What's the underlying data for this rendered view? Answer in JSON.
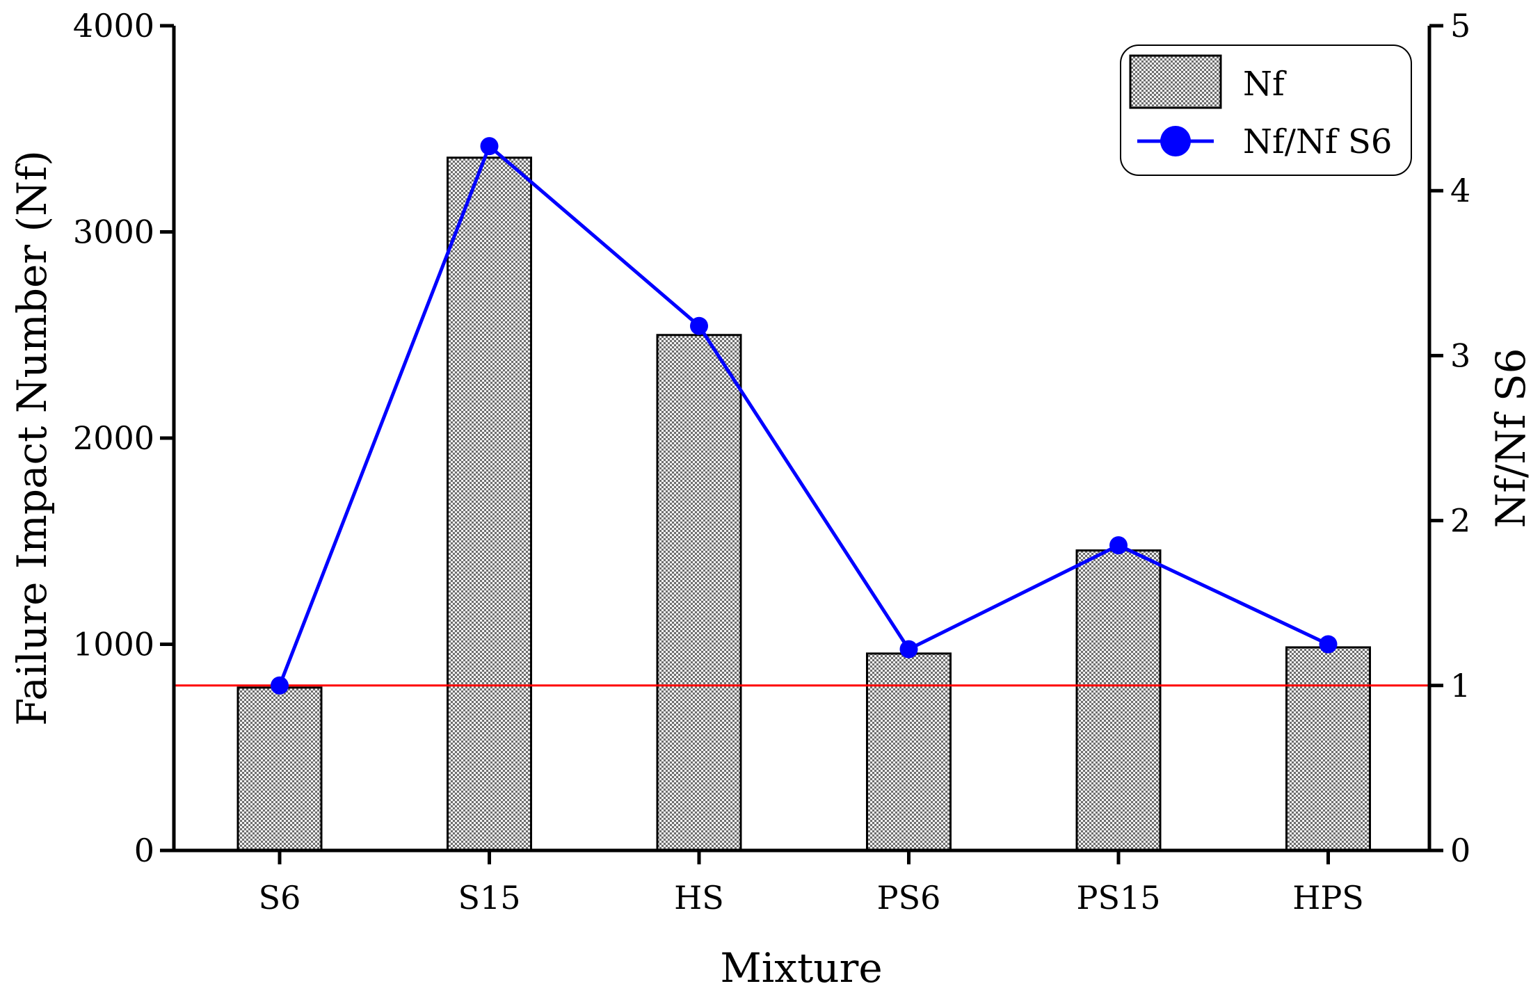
{
  "chart_data": {
    "type": "bar",
    "categories": [
      "S6",
      "S15",
      "HS",
      "PS6",
      "PS15",
      "HPS"
    ],
    "series": [
      {
        "name": "Nf",
        "type": "bar",
        "axis": "left",
        "values": [
          790,
          3360,
          2500,
          955,
          1455,
          985
        ]
      },
      {
        "name": "Nf/Nf S6",
        "type": "line",
        "axis": "right",
        "values": [
          1.0,
          4.27,
          3.18,
          1.22,
          1.85,
          1.25
        ],
        "color": "#0000ff"
      }
    ],
    "reference_line": {
      "axis": "right",
      "value": 1,
      "color": "#ff0000"
    },
    "xlabel": "Mixture",
    "ylabel": "Failure Impact Number (Nf)",
    "y2label": "Nf/Nf S6",
    "ylim": [
      0,
      4000
    ],
    "y2lim": [
      0,
      5
    ],
    "yticks": [
      "0",
      "1000",
      "2000",
      "3000",
      "4000"
    ],
    "y2ticks": [
      "0",
      "1",
      "2",
      "3",
      "4",
      "5"
    ],
    "legend": {
      "placement": "top-right",
      "entries": [
        "Nf",
        "Nf/Nf S6"
      ]
    },
    "grid": false
  }
}
